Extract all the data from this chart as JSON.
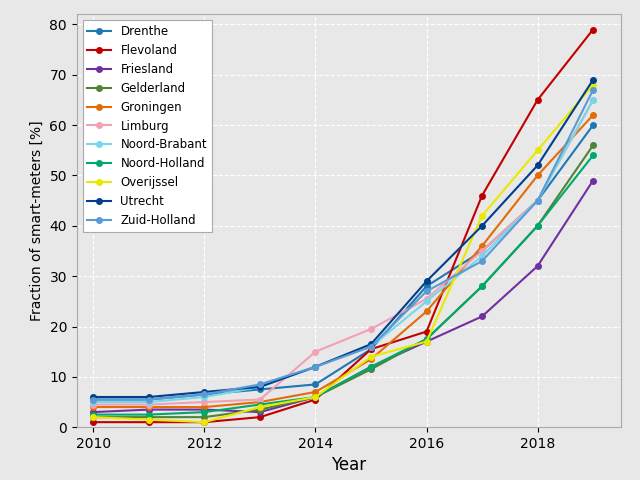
{
  "xlabel": "Year",
  "ylabel": "Fraction of smart-meters [%]",
  "years": [
    2010,
    2011,
    2012,
    2013,
    2014,
    2015,
    2016,
    2017,
    2018,
    2019
  ],
  "series": {
    "Drenthe": {
      "color": "#1f77b4",
      "data": [
        5.5,
        5.5,
        6.5,
        7.5,
        8.5,
        15.5,
        28.0,
        35.0,
        45.0,
        60.0
      ]
    },
    "Flevoland": {
      "color": "#c00000",
      "data": [
        1.0,
        1.0,
        1.0,
        2.0,
        5.5,
        15.5,
        19.0,
        46.0,
        65.0,
        79.0
      ]
    },
    "Friesland": {
      "color": "#7030a0",
      "data": [
        3.0,
        3.5,
        3.5,
        3.0,
        6.0,
        12.0,
        17.0,
        22.0,
        32.0,
        49.0
      ]
    },
    "Gelderland": {
      "color": "#538135",
      "data": [
        2.0,
        2.0,
        2.0,
        3.5,
        6.0,
        11.5,
        17.5,
        28.0,
        40.0,
        56.0
      ]
    },
    "Groningen": {
      "color": "#e36c09",
      "data": [
        4.0,
        4.0,
        4.0,
        5.0,
        7.0,
        13.5,
        23.0,
        36.0,
        50.0,
        62.0
      ]
    },
    "Limburg": {
      "color": "#f4a0b4",
      "data": [
        4.5,
        4.5,
        5.0,
        5.5,
        15.0,
        19.5,
        25.5,
        35.0,
        45.0,
        65.0
      ]
    },
    "Noord-Brabant": {
      "color": "#76d7ea",
      "data": [
        5.0,
        5.0,
        6.0,
        8.0,
        12.0,
        16.0,
        25.0,
        34.0,
        45.0,
        65.0
      ]
    },
    "Noord-Holland": {
      "color": "#00a86b",
      "data": [
        2.5,
        2.5,
        3.0,
        4.5,
        6.0,
        12.0,
        17.5,
        28.0,
        40.0,
        54.0
      ]
    },
    "Overijssel": {
      "color": "#e8e800",
      "data": [
        2.0,
        1.5,
        1.0,
        4.0,
        6.0,
        14.0,
        17.0,
        42.0,
        55.0,
        68.0
      ]
    },
    "Utrecht": {
      "color": "#003f8a",
      "data": [
        6.0,
        6.0,
        7.0,
        8.0,
        12.0,
        16.5,
        29.0,
        40.0,
        52.0,
        69.0
      ]
    },
    "Zuid-Holland": {
      "color": "#5b9bd5",
      "data": [
        5.5,
        5.5,
        6.5,
        8.5,
        12.0,
        16.0,
        27.0,
        33.0,
        45.0,
        67.0
      ]
    }
  },
  "ylim": [
    0,
    82
  ],
  "yticks": [
    0,
    10,
    20,
    30,
    40,
    50,
    60,
    70,
    80
  ],
  "xlim": [
    2009.7,
    2019.5
  ],
  "background_color": "#e8e8e8",
  "grid_color": "#ffffff",
  "figsize": [
    6.4,
    4.8
  ],
  "dpi": 100
}
